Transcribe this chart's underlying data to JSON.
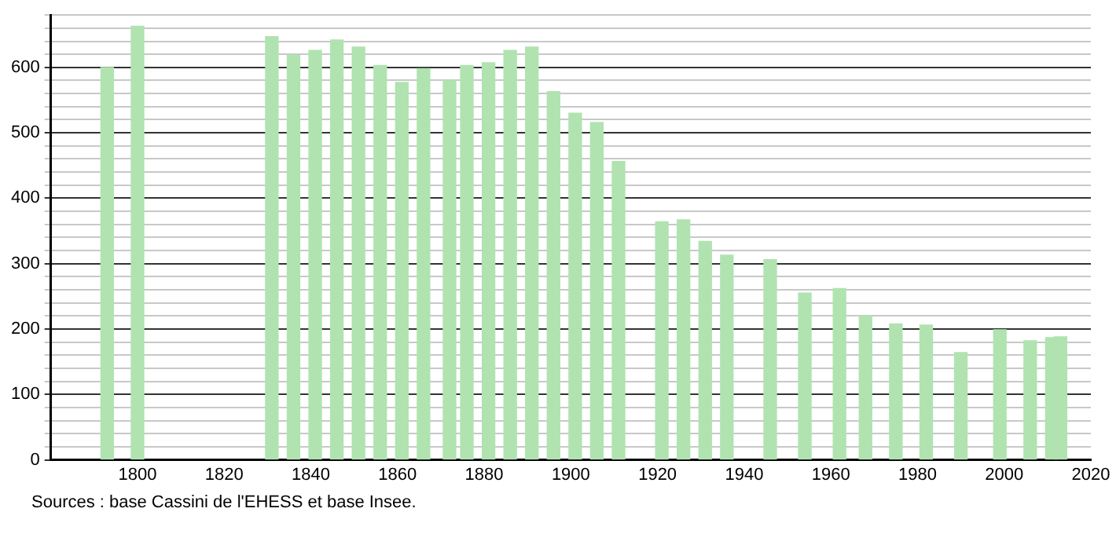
{
  "chart_data": {
    "type": "bar",
    "x": [
      1793,
      1800,
      1831,
      1836,
      1841,
      1846,
      1851,
      1856,
      1861,
      1866,
      1872,
      1876,
      1881,
      1886,
      1891,
      1896,
      1901,
      1906,
      1911,
      1921,
      1926,
      1931,
      1936,
      1946,
      1954,
      1962,
      1968,
      1975,
      1982,
      1990,
      1999,
      2006,
      2011,
      2013
    ],
    "values": [
      600,
      663,
      647,
      619,
      626,
      642,
      631,
      603,
      577,
      598,
      580,
      603,
      607,
      626,
      631,
      563,
      530,
      516,
      456,
      364,
      367,
      334,
      313,
      306,
      255,
      262,
      220,
      208,
      206,
      164,
      199,
      182,
      187,
      188
    ],
    "color": "#b0e3b0",
    "xlim": [
      1780,
      2020
    ],
    "xticks": [
      1800,
      1820,
      1840,
      1860,
      1880,
      1900,
      1920,
      1940,
      1960,
      1980,
      2000,
      2020
    ],
    "ylim": [
      0,
      680
    ],
    "yticks": [
      0,
      {
        "value": 20,
        "label": null
      },
      {
        "value": 40,
        "label": null
      },
      {
        "value": 60,
        "label": null
      },
      {
        "value": 80,
        "label": null
      },
      100,
      {
        "value": 120,
        "label": null
      },
      {
        "value": 140,
        "label": null
      },
      {
        "value": 160,
        "label": null
      },
      {
        "value": 180,
        "label": null
      },
      200,
      {
        "value": 220,
        "label": null
      },
      {
        "value": 240,
        "label": null
      },
      {
        "value": 260,
        "label": null
      },
      {
        "value": 280,
        "label": null
      },
      300,
      {
        "value": 320,
        "label": null
      },
      {
        "value": 340,
        "label": null
      },
      {
        "value": 360,
        "label": null
      },
      {
        "value": 380,
        "label": null
      },
      400,
      {
        "value": 420,
        "label": null
      },
      {
        "value": 440,
        "label": null
      },
      {
        "value": 460,
        "label": null
      },
      {
        "value": 480,
        "label": null
      },
      500,
      {
        "value": 520,
        "label": null
      },
      {
        "value": 540,
        "label": null
      },
      {
        "value": 560,
        "label": null
      },
      {
        "value": 580,
        "label": null
      },
      600,
      {
        "value": 620,
        "label": null
      },
      {
        "value": 640,
        "label": null
      },
      {
        "value": 660,
        "label": null
      },
      {
        "value": 680,
        "label": null
      }
    ],
    "grid": "y",
    "annotations": [
      "Sources : base Cassini de l'EHESS et base Insee."
    ]
  }
}
